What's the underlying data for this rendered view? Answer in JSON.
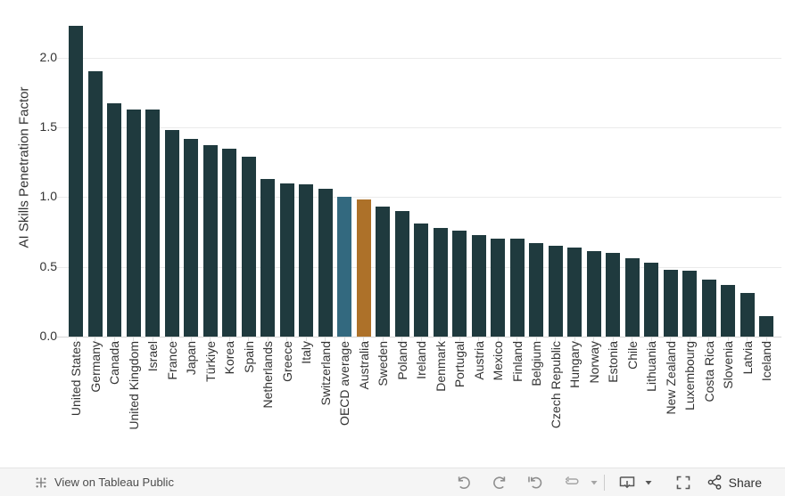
{
  "chart_data": {
    "type": "bar",
    "title": "",
    "xlabel": "",
    "ylabel": "AI Skills Penetration Factor",
    "ylim": [
      0,
      2.3
    ],
    "yticks": [
      0.0,
      0.5,
      1.0,
      1.5,
      2.0
    ],
    "grid": true,
    "legend": "none",
    "categories": [
      "United States",
      "Germany",
      "Canada",
      "United Kingdom",
      "Israel",
      "France",
      "Japan",
      "Türkiye",
      "Korea",
      "Spain",
      "Netherlands",
      "Greece",
      "Italy",
      "Switzerland",
      "OECD average",
      "Australia",
      "Sweden",
      "Poland",
      "Ireland",
      "Denmark",
      "Portugal",
      "Austria",
      "Mexico",
      "Finland",
      "Belgium",
      "Czech Republic",
      "Hungary",
      "Norway",
      "Estonia",
      "Chile",
      "Lithuania",
      "New Zealand",
      "Luxembourg",
      "Costa Rica",
      "Slovenia",
      "Latvia",
      "Iceland"
    ],
    "values": [
      2.23,
      1.9,
      1.67,
      1.63,
      1.63,
      1.48,
      1.42,
      1.37,
      1.35,
      1.29,
      1.13,
      1.1,
      1.09,
      1.06,
      1.0,
      0.98,
      0.93,
      0.9,
      0.81,
      0.78,
      0.76,
      0.73,
      0.7,
      0.7,
      0.67,
      0.65,
      0.64,
      0.61,
      0.6,
      0.56,
      0.53,
      0.48,
      0.47,
      0.41,
      0.37,
      0.31,
      0.15
    ],
    "bar_color_default": "#1f3a3e",
    "highlight_colors": {
      "OECD average": "#33697f",
      "Australia": "#ad7129"
    }
  },
  "toolbar": {
    "view_label": "View on Tableau Public",
    "share_label": "Share",
    "icon_names": [
      "tableau-logo-icon",
      "undo-icon",
      "redo-icon",
      "replay-icon",
      "refresh-icon",
      "caret-down-icon",
      "download-icon",
      "caret-down-icon",
      "fullscreen-icon",
      "share-icon"
    ],
    "colors": {
      "toolbar_bg": "#f5f5f5",
      "muted_icon": "#8f8f8f",
      "dark_icon": "#565656",
      "text": "#4c4c4c"
    }
  }
}
